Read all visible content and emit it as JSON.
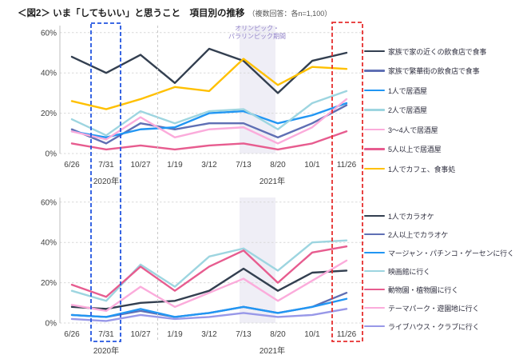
{
  "title": {
    "main": "＜図2＞ いま「してもいい」と思うこと　項目別の推移",
    "note": "（複数回答：各n=1,100）"
  },
  "annotations": {
    "olympic_label_line1": "オリンピック・",
    "olympic_label_line2": "パラリンピック期間",
    "blue_box_highlight_tick": "7/31",
    "red_box_highlight_tick": "11/26"
  },
  "colors": {
    "navy": "#333F50",
    "slate_blue": "#5F6FB4",
    "bright_blue": "#2196F3",
    "light_teal": "#9DD5E0",
    "light_pink": "#FBABDB",
    "magenta_pink": "#E75C8F",
    "gold": "#FFC000",
    "periwinkle": "#9898E8",
    "band_fill": "#EFEEF6",
    "olympic_text": "#9283C9",
    "gridline": "#D9D9D9",
    "axis_line": "#BFBFBF",
    "blue_box": "#2356E0",
    "red_box": "#E62E2E",
    "separator": "#C8C8C8",
    "tick_text": "#404040"
  },
  "chart_data": [
    {
      "type": "line",
      "position": "top",
      "x_labels": [
        "6/26",
        "7/31",
        "10/27",
        "1/19",
        "3/12",
        "7/13",
        "8/20",
        "10/1",
        "11/26"
      ],
      "year_labels": [
        "2020年",
        "2021年"
      ],
      "yticks": [
        "0%",
        "20%",
        "40%",
        "60%"
      ],
      "ylim": [
        0,
        60
      ],
      "grid": true,
      "legend_position": "right",
      "olympic_band_between": [
        "7/13",
        "8/20"
      ],
      "series": [
        {
          "name": "家族で家の近くの飲食店で食事",
          "color": "#333F50",
          "values": [
            48,
            40,
            49,
            35,
            52,
            46,
            30,
            46,
            50
          ]
        },
        {
          "name": "家族で繁華街の飲食店で食事",
          "color": "#5F6FB4",
          "values": [
            12,
            5,
            15,
            12,
            15,
            15,
            8,
            15,
            24
          ]
        },
        {
          "name": "1人で居酒屋",
          "color": "#2196F3",
          "values": [
            11,
            8,
            12,
            13,
            20,
            21,
            15,
            19,
            25
          ]
        },
        {
          "name": "2人で居酒屋",
          "color": "#9DD5E0",
          "values": [
            17,
            9,
            21,
            15,
            21,
            22,
            12,
            25,
            31
          ]
        },
        {
          "name": "3～4人で居酒屋",
          "color": "#FBABDB",
          "values": [
            11,
            7,
            18,
            8,
            12,
            13,
            5,
            13,
            27
          ]
        },
        {
          "name": "5人以上で居酒屋",
          "color": "#E75C8F",
          "values": [
            5,
            2,
            4,
            2,
            4,
            5,
            2,
            5,
            11
          ]
        },
        {
          "name": "1人でカフェ、食事処",
          "color": "#FFC000",
          "values": [
            26,
            22,
            27,
            33,
            31,
            47,
            34,
            43,
            42
          ]
        }
      ]
    },
    {
      "type": "line",
      "position": "bottom",
      "x_labels": [
        "6/26",
        "7/31",
        "10/27",
        "1/19",
        "3/12",
        "7/13",
        "8/20",
        "10/1",
        "11/26"
      ],
      "year_labels": [
        "2020年",
        "2021年"
      ],
      "yticks": [
        "0%",
        "20%",
        "40%",
        "60%"
      ],
      "ylim": [
        0,
        60
      ],
      "grid": true,
      "legend_position": "right",
      "olympic_band_between": [
        "7/13",
        "8/20"
      ],
      "series": [
        {
          "name": "1人でカラオケ",
          "color": "#333F50",
          "values": [
            8,
            7,
            10,
            11,
            16,
            27,
            16,
            25,
            26
          ]
        },
        {
          "name": "2人以上でカラオケ",
          "color": "#5F6FB4",
          "values": [
            4,
            3,
            6,
            3,
            5,
            8,
            5,
            8,
            15
          ]
        },
        {
          "name": "マージャン・パチンコ・ゲーセンに行く",
          "color": "#2196F3",
          "values": [
            4,
            3,
            7,
            3,
            5,
            8,
            5,
            8,
            12
          ]
        },
        {
          "name": "映画館に行く",
          "color": "#9DD5E0",
          "values": [
            16,
            11,
            29,
            18,
            33,
            37,
            26,
            40,
            41
          ]
        },
        {
          "name": "動物園・植物園に行く",
          "color": "#E75C8F",
          "values": [
            19,
            13,
            28,
            16,
            28,
            36,
            20,
            35,
            38
          ]
        },
        {
          "name": "テーマパーク・遊園地に行く",
          "color": "#FBABDB",
          "values": [
            9,
            6,
            18,
            8,
            15,
            22,
            11,
            21,
            31
          ]
        },
        {
          "name": "ライブハウス・クラブに行く",
          "color": "#9898E8",
          "values": [
            2,
            1,
            4,
            2,
            3,
            5,
            3,
            4,
            7
          ]
        }
      ]
    }
  ]
}
